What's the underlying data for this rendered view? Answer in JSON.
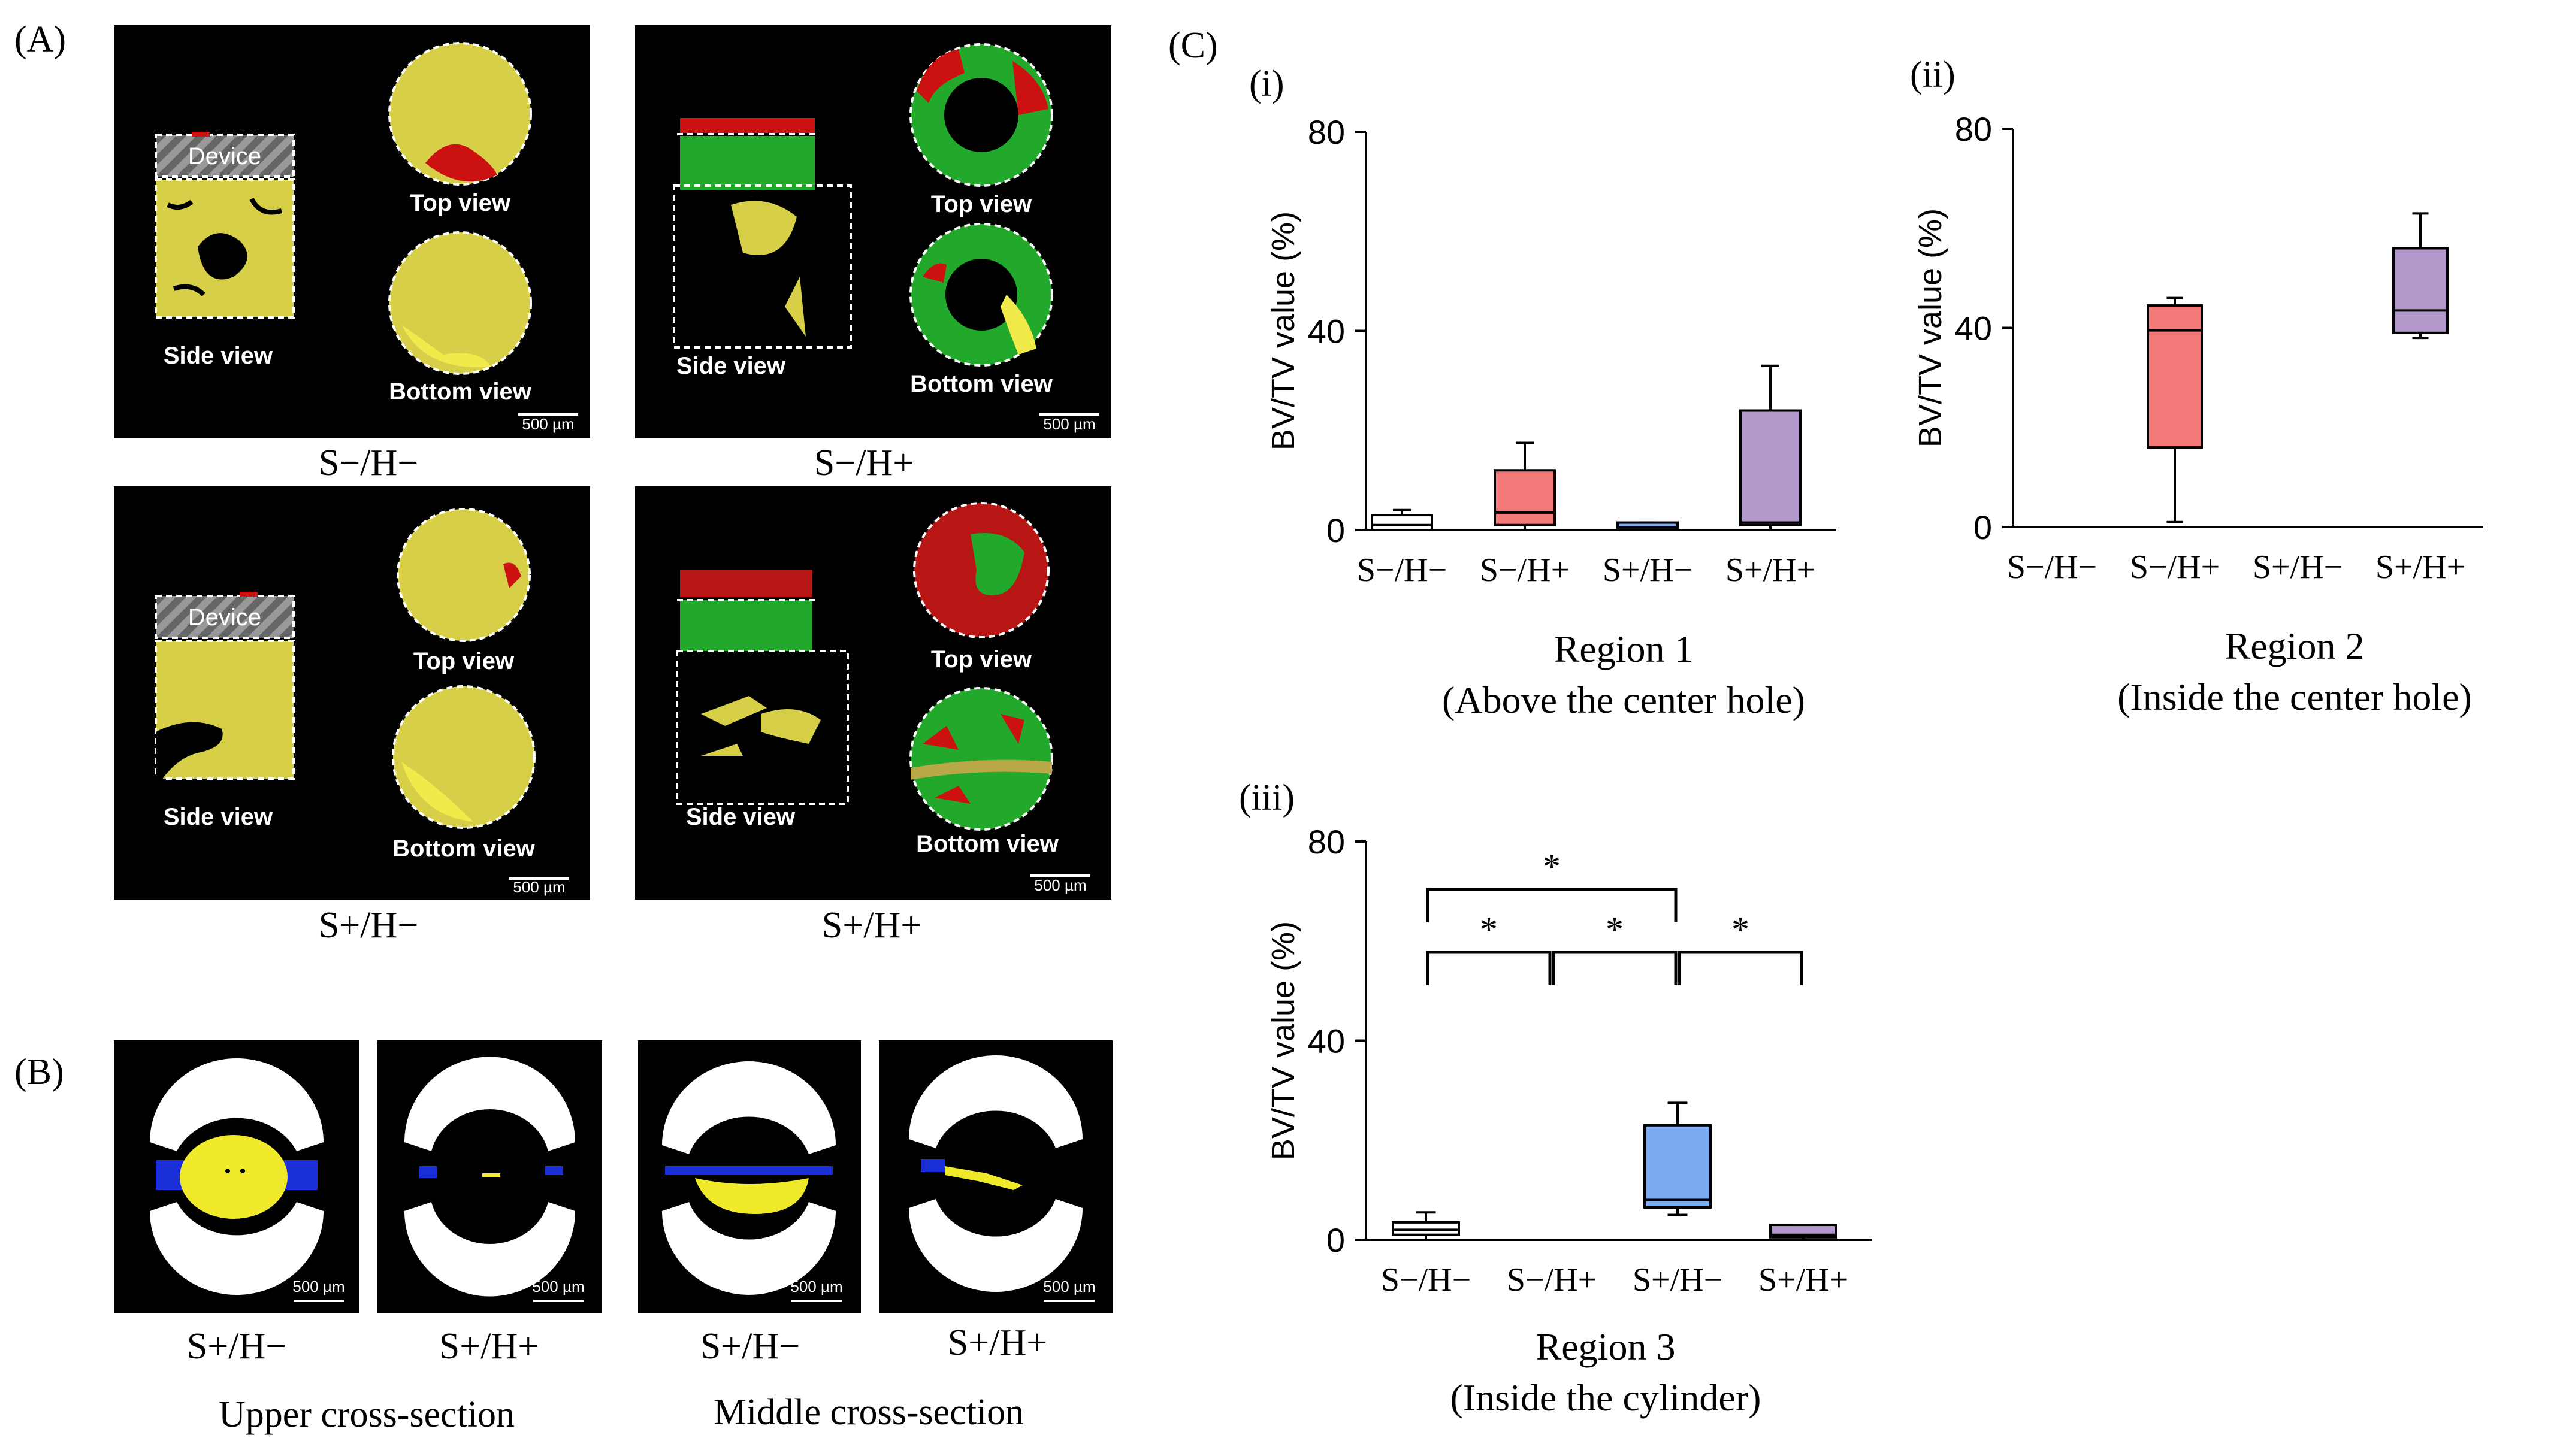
{
  "labels": {
    "panel_a": "(A)",
    "panel_b": "(B)",
    "panel_c": "(C)",
    "sub_i": "(i)",
    "sub_ii": "(ii)",
    "sub_iii": "(iii)"
  },
  "panel_a": {
    "device": "Device",
    "side_view": "Side view",
    "top_view": "Top view",
    "bottom_view": "Bottom view",
    "scalebar": "500 µm",
    "captions": [
      "S−/H−",
      "S−/H+",
      "S+/H−",
      "S+/H+"
    ]
  },
  "panel_b": {
    "scalebar": "500 µm",
    "captions": [
      "S+/H−",
      "S+/H+",
      "S+/H−",
      "S+/H+"
    ],
    "group_captions": [
      "Upper cross-section",
      "Middle cross-section"
    ]
  },
  "colors": {
    "yellow_bone": "#e2dc4a",
    "red": "#cc1a1a",
    "green": "#22a82a",
    "blue": "#1b2fd8",
    "white": "#ffffff",
    "box_none": "#ffffff",
    "box_h": "#f47a7a",
    "box_s": "#7aaaf0",
    "box_sh": "#b399cc"
  },
  "chart_data": [
    {
      "type": "box",
      "id": "i",
      "ylabel": "BV/TV value (%)",
      "ylim": [
        0,
        80
      ],
      "yticks": [
        "0",
        "40",
        "80"
      ],
      "categories": [
        "S−/H−",
        "S−/H+",
        "S+/H−",
        "S+/H+"
      ],
      "boxes": [
        {
          "min": 0,
          "q1": 0,
          "median": 1,
          "q3": 3,
          "max": 4
        },
        {
          "min": 0,
          "q1": 1,
          "median": 3.5,
          "q3": 12,
          "max": 17.5
        },
        {
          "min": 0,
          "q1": 0,
          "median": 0.5,
          "q3": 1.5,
          "max": 1.5
        },
        {
          "min": 0,
          "q1": 1,
          "median": 1.5,
          "q3": 24,
          "max": 33
        }
      ],
      "title": "Region 1",
      "subtitle": "(Above the center hole)"
    },
    {
      "type": "box",
      "id": "ii",
      "ylabel": "BV/TV value (%)",
      "ylim": [
        0,
        80
      ],
      "yticks": [
        "0",
        "40",
        "80"
      ],
      "categories": [
        "S−/H−",
        "S−/H+",
        "S+/H−",
        "S+/H+"
      ],
      "boxes": [
        null,
        {
          "min": 1,
          "q1": 16,
          "median": 39.5,
          "q3": 44.5,
          "max": 46
        },
        null,
        {
          "min": 38,
          "q1": 39,
          "median": 43.5,
          "q3": 56,
          "max": 63
        }
      ],
      "title": "Region 2",
      "subtitle": "(Inside the center hole)"
    },
    {
      "type": "box",
      "id": "iii",
      "ylabel": "BV/TV value (%)",
      "ylim": [
        0,
        80
      ],
      "yticks": [
        "0",
        "40",
        "80"
      ],
      "categories": [
        "S−/H−",
        "S−/H+",
        "S+/H−",
        "S+/H+"
      ],
      "boxes": [
        {
          "min": 0,
          "q1": 1,
          "median": 2,
          "q3": 3.5,
          "max": 5.5
        },
        null,
        {
          "min": 5,
          "q1": 6.5,
          "median": 8,
          "q3": 23,
          "max": 27.5
        },
        {
          "min": 0,
          "q1": 0.5,
          "median": 1,
          "q3": 3,
          "max": 3
        }
      ],
      "significance": [
        {
          "from": 0,
          "to": 2,
          "label": "*"
        },
        {
          "from": 0,
          "to": 1,
          "label": "*"
        },
        {
          "from": 1,
          "to": 2,
          "label": "*"
        },
        {
          "from": 2,
          "to": 3,
          "label": "*"
        }
      ],
      "title": "Region 3",
      "subtitle": "(Inside the cylinder)"
    }
  ]
}
